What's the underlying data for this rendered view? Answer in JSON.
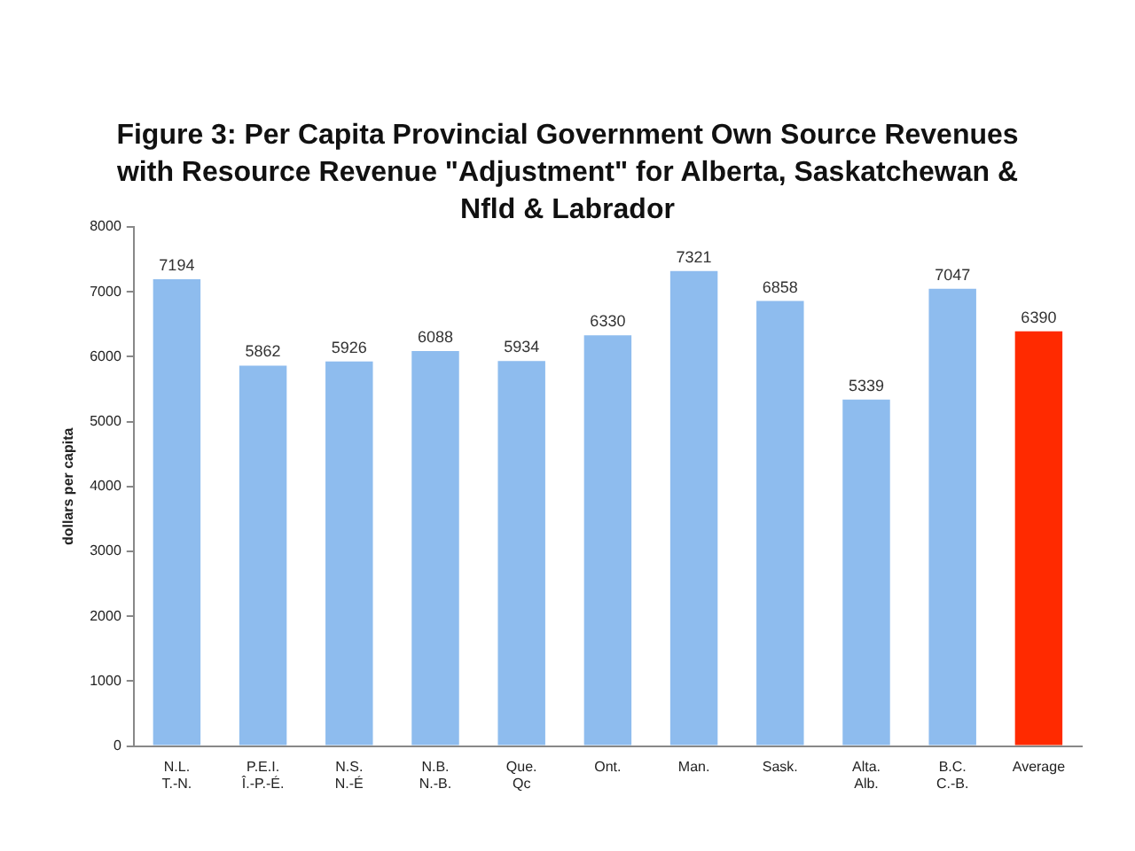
{
  "chart_data": {
    "type": "bar",
    "title": "Figure 3: Per Capita Provincial Government Own Source Revenues with Resource Revenue \"Adjustment\" for Alberta, Saskatchewan & Nfld & Labrador",
    "ylabel": "dollars per capita",
    "categories": [
      "N.L.\nT.-N.",
      "P.E.I.\nÎ.-P.-É.",
      "N.S.\nN.-É",
      "N.B.\nN.-B.",
      "Que.\nQc",
      "Ont.",
      "Man.",
      "Sask.",
      "Alta.\nAlb.",
      "B.C.\nC.-B.",
      "Average"
    ],
    "values": [
      7194,
      5862,
      5926,
      6088,
      5934,
      6330,
      7321,
      6858,
      5339,
      7047,
      6390
    ],
    "colors": [
      "#8ebcee",
      "#8ebcee",
      "#8ebcee",
      "#8ebcee",
      "#8ebcee",
      "#8ebcee",
      "#8ebcee",
      "#8ebcee",
      "#8ebcee",
      "#8ebcee",
      "#ff2a00"
    ],
    "ylim": [
      0,
      8000
    ],
    "yticks": [
      0,
      1000,
      2000,
      3000,
      4000,
      5000,
      6000,
      7000,
      8000
    ],
    "grid": false,
    "legend": false,
    "data_labels": true
  }
}
